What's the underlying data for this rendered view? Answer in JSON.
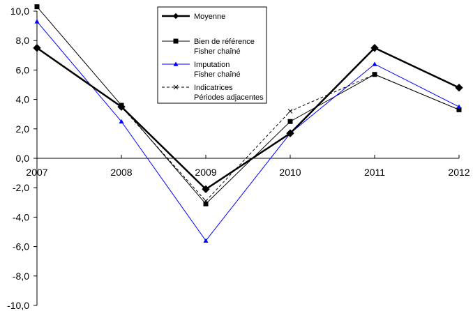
{
  "chart_data": {
    "type": "line",
    "title": "",
    "xlabel": "",
    "ylabel": "",
    "categories": [
      "2007",
      "2008",
      "2009",
      "2010",
      "2011",
      "2012"
    ],
    "ylim": [
      -10,
      10
    ],
    "y_ticks": [
      10,
      8,
      6,
      4,
      2,
      0,
      -2,
      -4,
      -6,
      -8,
      -10
    ],
    "y_tick_labels": [
      "10,0",
      "8,0",
      "6,0",
      "4,0",
      "2,0",
      "0,0",
      "-2,0",
      "-4,0",
      "-6,0",
      "-8,0",
      "-10,0"
    ],
    "grid": false,
    "legend_position": "top-center",
    "series": [
      {
        "name": "Moyenne",
        "values": [
          7.5,
          3.5,
          -2.1,
          1.7,
          7.5,
          4.8
        ],
        "color": "#000000",
        "marker": "diamond",
        "line": "thick-solid"
      },
      {
        "name": "Bien de référence\nFisher chaîné",
        "values": [
          10.3,
          3.6,
          -3.1,
          2.5,
          5.7,
          3.3
        ],
        "color": "#000000",
        "marker": "square",
        "line": "thin-solid"
      },
      {
        "name": "Imputation\nFisher chaîné",
        "values": [
          9.3,
          2.5,
          -5.6,
          1.7,
          6.4,
          3.5
        ],
        "color": "#0000ff",
        "marker": "triangle",
        "line": "thin-solid"
      },
      {
        "name": "Indicatrices\nPériodes adjacentes",
        "values": [
          7.5,
          3.5,
          -2.9,
          3.2,
          5.7,
          3.3
        ],
        "color": "#000000",
        "marker": "x",
        "line": "dashed"
      }
    ]
  }
}
